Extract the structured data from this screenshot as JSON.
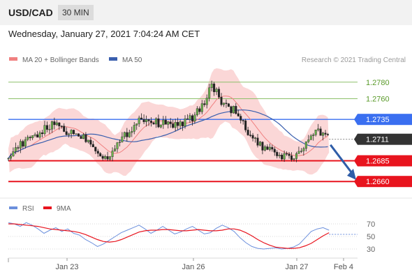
{
  "header": {
    "symbol": "USD/CAD",
    "timeframe": "30 MIN"
  },
  "datetime": "Wednesday, January 27, 2021 7:04:24 AM CET",
  "legend": {
    "ma20": "MA 20 + Bollinger Bands",
    "ma50": "MA 50",
    "source": "Research © 2021 Trading Central"
  },
  "rsi_legend": {
    "rsi": "RSI",
    "ma": "9MA"
  },
  "colors": {
    "bollinger": "#f8b6b6",
    "ma20": "#f08080",
    "ma50": "#3a5fae",
    "resistance_blue": "#3a6ff0",
    "support_red": "#e8141e",
    "green_level": "#8dc06a",
    "current": "#333333",
    "arrow": "#2f5da8",
    "rsi": "#6b8fdc",
    "rsi_ma": "#e8141e"
  },
  "chart_data": [
    {
      "type": "candlestick",
      "title": "USD/CAD",
      "timeframe": "30 MIN",
      "ylim": [
        1.2645,
        1.2795
      ],
      "x_tick_labels": [
        "Jan 23",
        "Jan 26",
        "Jan 27",
        "Feb 4"
      ],
      "levels": [
        {
          "value": 1.278,
          "label": "1.2780",
          "style": "green-line"
        },
        {
          "value": 1.276,
          "label": "1.2760",
          "style": "green-line"
        },
        {
          "value": 1.2735,
          "label": "1.2735",
          "style": "blue-line"
        },
        {
          "value": 1.2711,
          "label": "1.2711",
          "style": "current-price"
        },
        {
          "value": 1.2685,
          "label": "1.2685",
          "style": "red-line"
        },
        {
          "value": 1.266,
          "label": "1.2660",
          "style": "red-line"
        }
      ],
      "price_path": [
        [
          0,
          1.2693
        ],
        [
          8,
          1.2702
        ],
        [
          20,
          1.2713
        ],
        [
          32,
          1.2725
        ],
        [
          40,
          1.273
        ],
        [
          48,
          1.272
        ],
        [
          56,
          1.2718
        ],
        [
          64,
          1.2712
        ],
        [
          72,
          1.27
        ],
        [
          80,
          1.2688
        ],
        [
          88,
          1.27
        ],
        [
          96,
          1.2715
        ],
        [
          104,
          1.2728
        ],
        [
          110,
          1.2738
        ],
        [
          118,
          1.2732
        ],
        [
          128,
          1.273
        ],
        [
          140,
          1.2728
        ],
        [
          152,
          1.2737
        ],
        [
          160,
          1.275
        ],
        [
          168,
          1.2778
        ],
        [
          172,
          1.2768
        ],
        [
          178,
          1.275
        ],
        [
          186,
          1.2747
        ],
        [
          200,
          1.2715
        ],
        [
          210,
          1.27
        ],
        [
          222,
          1.2693
        ],
        [
          234,
          1.2688
        ],
        [
          242,
          1.2697
        ],
        [
          248,
          1.271
        ],
        [
          256,
          1.272
        ],
        [
          262,
          1.2716
        ],
        [
          265,
          1.2711
        ]
      ],
      "annotation_arrow": {
        "from": [
          265,
          1.2711
        ],
        "to": [
          290,
          1.2662
        ]
      },
      "series": [
        {
          "name": "MA 20 + Bollinger Bands"
        },
        {
          "name": "MA 50"
        }
      ]
    },
    {
      "type": "line",
      "title": "RSI",
      "ylim": [
        20,
        80
      ],
      "y_ticks": [
        30,
        50,
        70
      ],
      "series": [
        {
          "name": "RSI",
          "values": [
            72,
            70,
            66,
            72,
            68,
            62,
            55,
            60,
            64,
            58,
            62,
            55,
            52,
            45,
            40,
            34,
            38,
            44,
            50,
            56,
            60,
            64,
            68,
            62,
            55,
            60,
            66,
            60,
            54,
            57,
            62,
            66,
            60,
            54,
            56,
            63,
            68,
            64,
            58,
            48,
            40,
            34,
            31,
            30,
            31,
            32,
            30,
            31,
            33,
            38,
            48,
            58,
            62,
            64,
            60
          ]
        },
        {
          "name": "9MA",
          "values": [
            70,
            70,
            69,
            68,
            67,
            66,
            64,
            62,
            61,
            60,
            59,
            58,
            56,
            53,
            49,
            45,
            42,
            41,
            42,
            45,
            49,
            53,
            57,
            59,
            60,
            60,
            61,
            61,
            60,
            59,
            59,
            60,
            61,
            60,
            59,
            59,
            60,
            62,
            62,
            60,
            56,
            51,
            45,
            40,
            36,
            33,
            32,
            31,
            31,
            32,
            35,
            39,
            45,
            51,
            56
          ]
        }
      ]
    }
  ]
}
